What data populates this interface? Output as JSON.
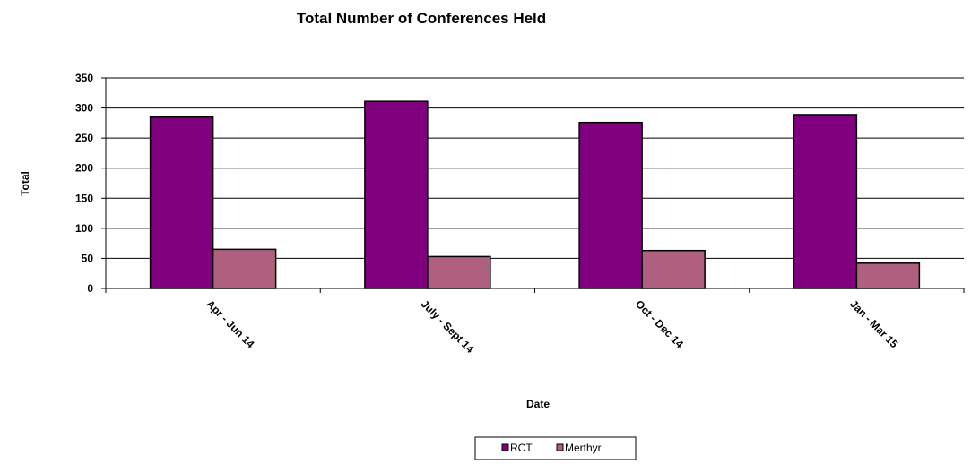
{
  "chart_data": {
    "type": "bar",
    "title": "Total Number of Conferences Held",
    "xlabel": "Date",
    "ylabel": "Total",
    "categories": [
      "Apr - Jun 14",
      "July - Sept 14",
      "Oct - Dec 14",
      "Jan - Mar 15"
    ],
    "series": [
      {
        "name": "RCT",
        "values": [
          285,
          311,
          276,
          289
        ],
        "color": "#800080"
      },
      {
        "name": "Merthyr",
        "values": [
          65,
          53,
          63,
          42
        ],
        "color": "#b0607f"
      }
    ],
    "ylim": [
      0,
      350
    ],
    "yticks": [
      0,
      50,
      100,
      150,
      200,
      250,
      300,
      350
    ],
    "grid": true,
    "legend_position": "bottom"
  }
}
